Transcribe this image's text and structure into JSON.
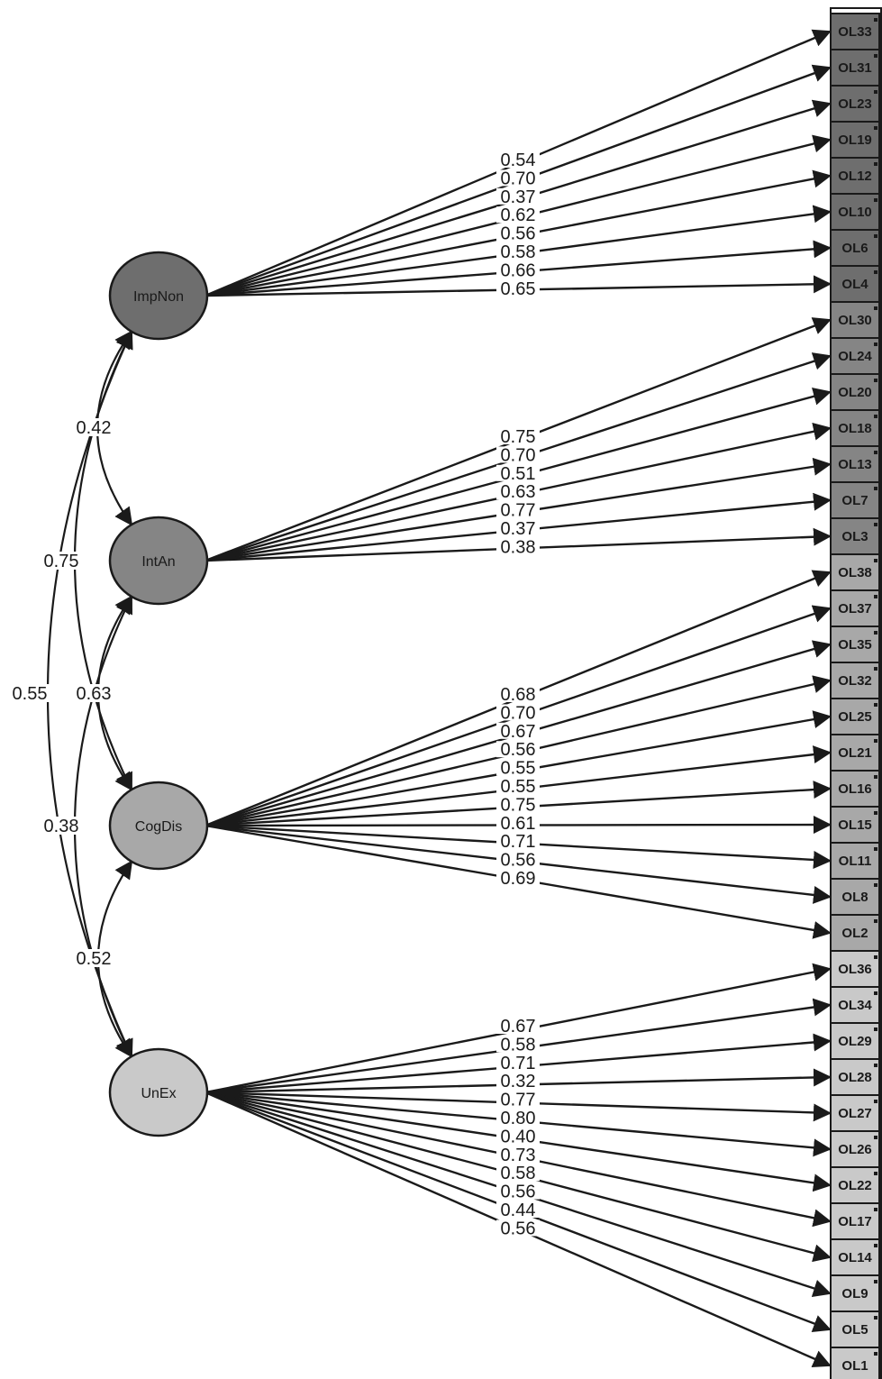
{
  "colors": {
    "ImpNon": "#6e6e6e",
    "IntAn": "#858585",
    "CogDis": "#a8a8a8",
    "UnEx": "#c9c9c9",
    "line": "#1a1a1a"
  },
  "factors": [
    {
      "id": "ImpNon",
      "label": "ImpNon"
    },
    {
      "id": "IntAn",
      "label": "IntAn"
    },
    {
      "id": "CogDis",
      "label": "CogDis"
    },
    {
      "id": "UnEx",
      "label": "UnEx"
    }
  ],
  "indicators": [
    {
      "label": "OL33",
      "factor": "ImpNon"
    },
    {
      "label": "OL31",
      "factor": "ImpNon"
    },
    {
      "label": "OL23",
      "factor": "ImpNon"
    },
    {
      "label": "OL19",
      "factor": "ImpNon"
    },
    {
      "label": "OL12",
      "factor": "ImpNon"
    },
    {
      "label": "OL10",
      "factor": "ImpNon"
    },
    {
      "label": "OL6",
      "factor": "ImpNon"
    },
    {
      "label": "OL4",
      "factor": "ImpNon"
    },
    {
      "label": "OL30",
      "factor": "IntAn"
    },
    {
      "label": "OL24",
      "factor": "IntAn"
    },
    {
      "label": "OL20",
      "factor": "IntAn"
    },
    {
      "label": "OL18",
      "factor": "IntAn"
    },
    {
      "label": "OL13",
      "factor": "IntAn"
    },
    {
      "label": "OL7",
      "factor": "IntAn"
    },
    {
      "label": "OL3",
      "factor": "IntAn"
    },
    {
      "label": "OL38",
      "factor": "CogDis"
    },
    {
      "label": "OL37",
      "factor": "CogDis"
    },
    {
      "label": "OL35",
      "factor": "CogDis"
    },
    {
      "label": "OL32",
      "factor": "CogDis"
    },
    {
      "label": "OL25",
      "factor": "CogDis"
    },
    {
      "label": "OL21",
      "factor": "CogDis"
    },
    {
      "label": "OL16",
      "factor": "CogDis"
    },
    {
      "label": "OL15",
      "factor": "CogDis"
    },
    {
      "label": "OL11",
      "factor": "CogDis"
    },
    {
      "label": "OL8",
      "factor": "CogDis"
    },
    {
      "label": "OL2",
      "factor": "CogDis"
    },
    {
      "label": "OL36",
      "factor": "UnEx"
    },
    {
      "label": "OL34",
      "factor": "UnEx"
    },
    {
      "label": "OL29",
      "factor": "UnEx"
    },
    {
      "label": "OL28",
      "factor": "UnEx"
    },
    {
      "label": "OL27",
      "factor": "UnEx"
    },
    {
      "label": "OL26",
      "factor": "UnEx"
    },
    {
      "label": "OL22",
      "factor": "UnEx"
    },
    {
      "label": "OL17",
      "factor": "UnEx"
    },
    {
      "label": "OL14",
      "factor": "UnEx"
    },
    {
      "label": "OL9",
      "factor": "UnEx"
    },
    {
      "label": "OL5",
      "factor": "UnEx"
    },
    {
      "label": "OL1",
      "factor": "UnEx"
    }
  ],
  "loadings": {
    "ImpNon": [
      "0.54",
      "0.70",
      "0.37",
      "0.62",
      "0.56",
      "0.58",
      "0.66",
      "0.65"
    ],
    "IntAn": [
      "0.75",
      "0.70",
      "0.51",
      "0.63",
      "0.77",
      "0.37",
      "0.38"
    ],
    "CogDis": [
      "0.68",
      "0.70",
      "0.67",
      "0.56",
      "0.55",
      "0.55",
      "0.75",
      "0.61",
      "0.71",
      "0.56",
      "0.69"
    ],
    "UnEx": [
      "0.67",
      "0.58",
      "0.71",
      "0.32",
      "0.77",
      "0.80",
      "0.40",
      "0.73",
      "0.58",
      "0.56",
      "0.44",
      "0.56"
    ]
  },
  "correlations": [
    {
      "from": "ImpNon",
      "to": "IntAn",
      "value": "0.42"
    },
    {
      "from": "ImpNon",
      "to": "CogDis",
      "value": "0.75"
    },
    {
      "from": "ImpNon",
      "to": "UnEx",
      "value": "0.55"
    },
    {
      "from": "IntAn",
      "to": "CogDis",
      "value": "0.63"
    },
    {
      "from": "IntAn",
      "to": "UnEx",
      "value": "0.38"
    },
    {
      "from": "CogDis",
      "to": "UnEx",
      "value": "0.52"
    }
  ]
}
